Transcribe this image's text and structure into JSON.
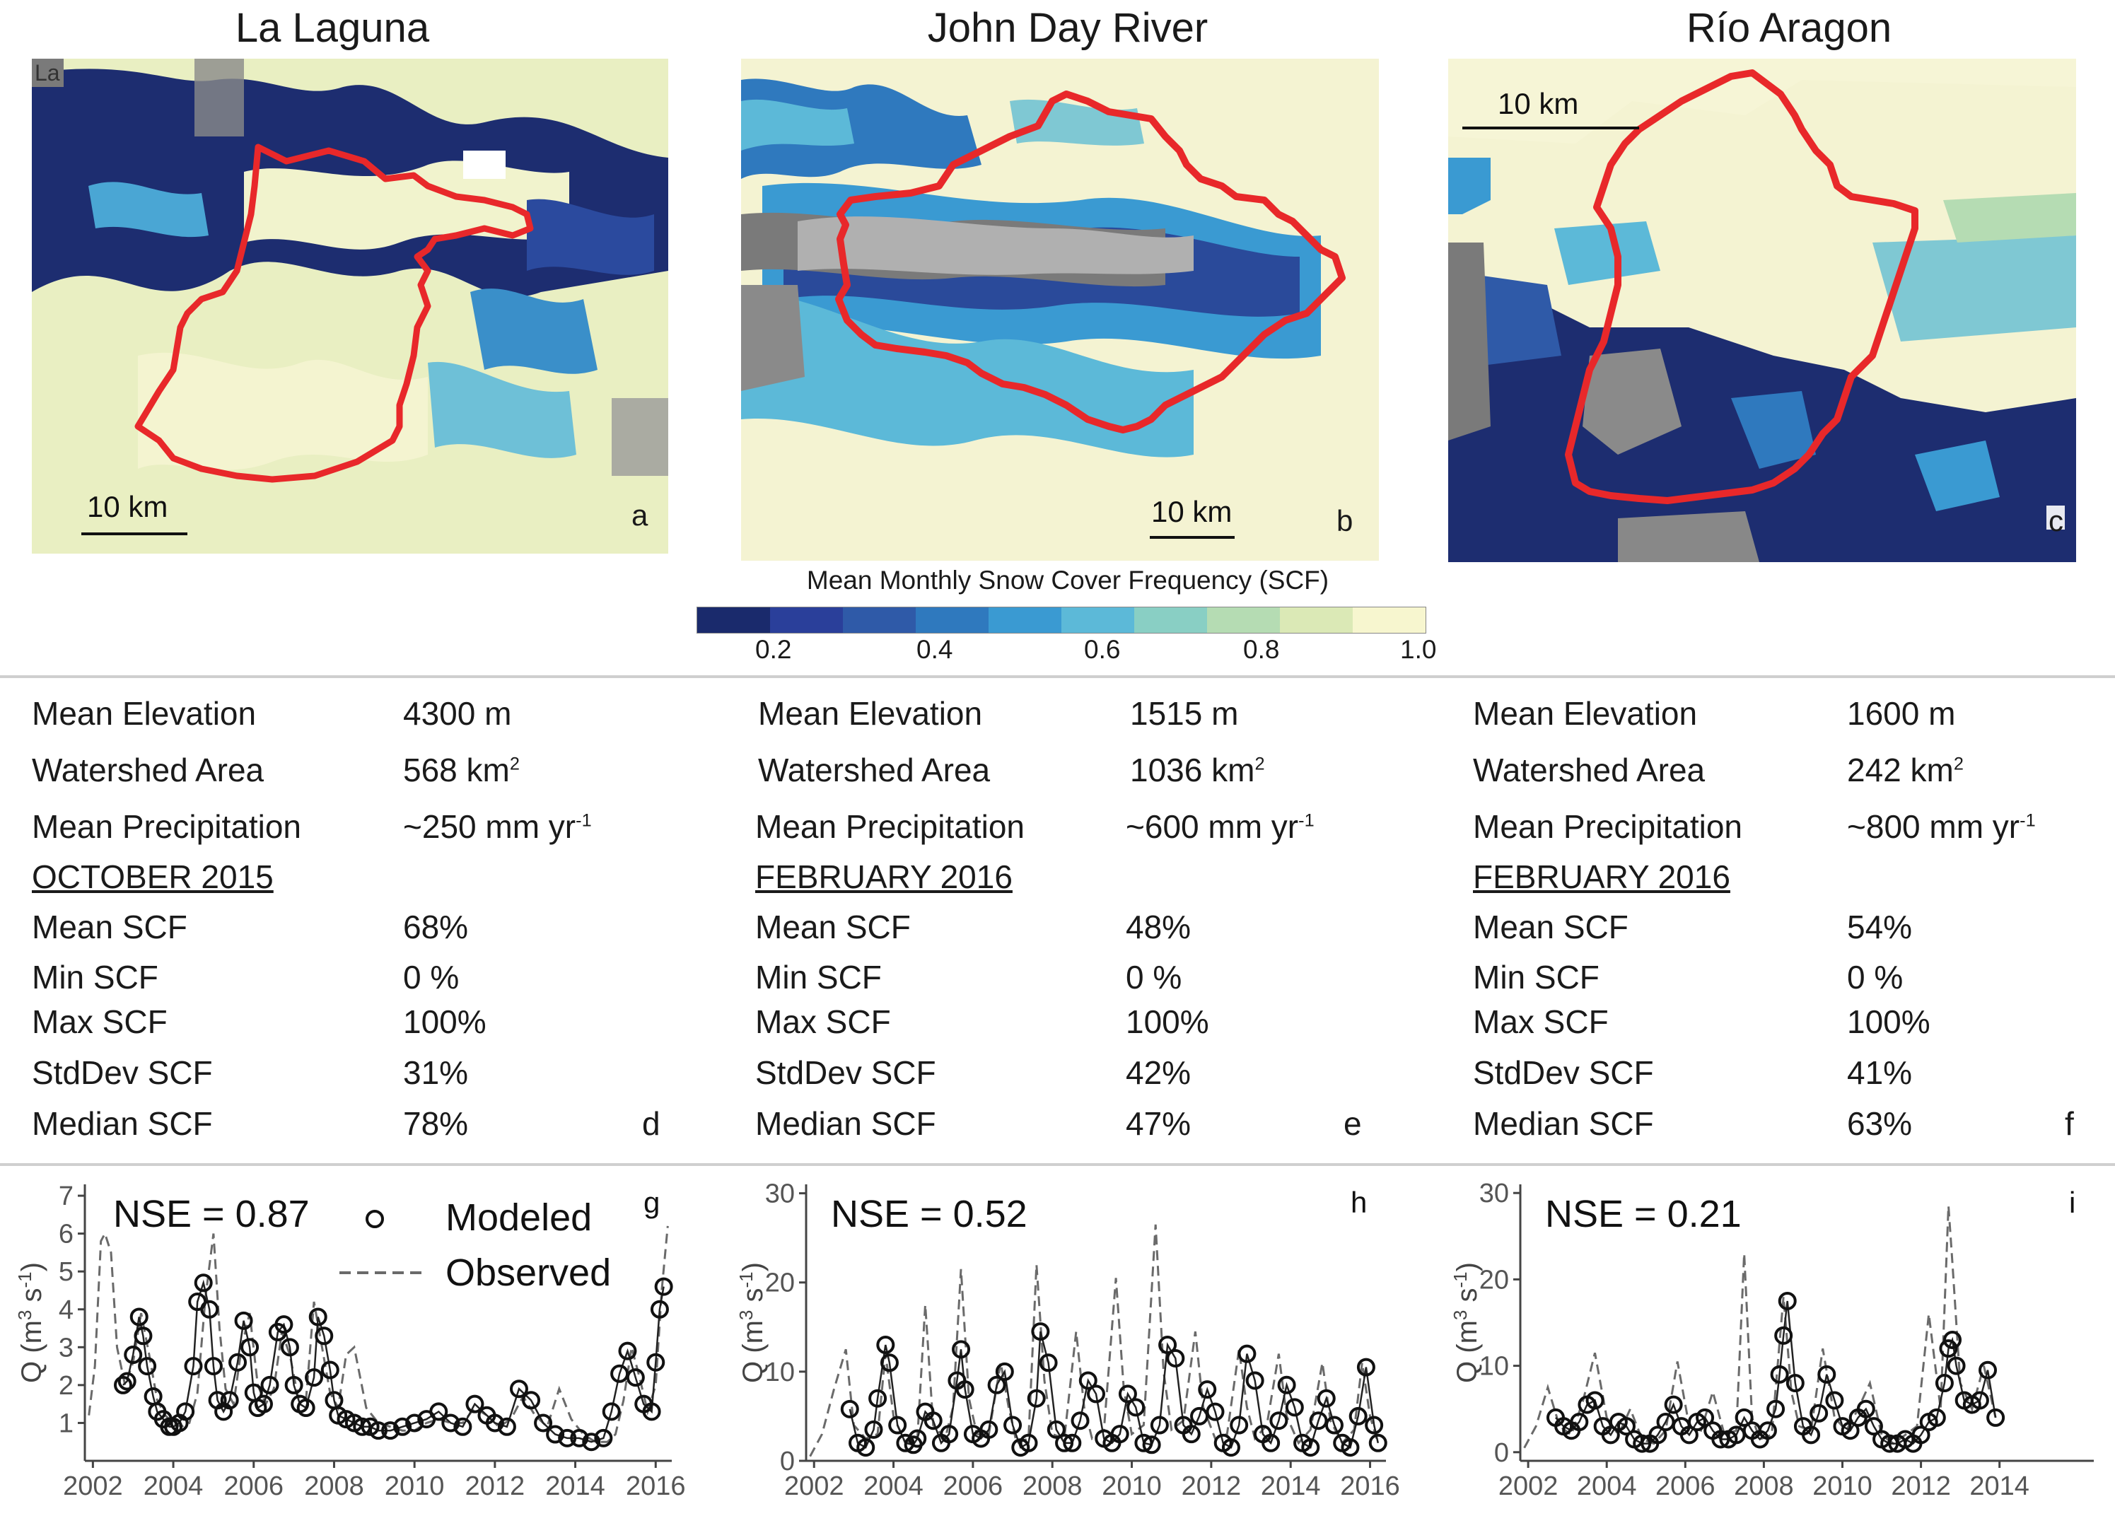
{
  "colorbar": {
    "title": "Mean Monthly Snow Cover Frequency (SCF)",
    "ticks": [
      "0.2",
      "0.4",
      "0.6",
      "0.8",
      "1.0"
    ],
    "colors": [
      "#1a2a6c",
      "#2a3f9a",
      "#2f5aa8",
      "#2f79be",
      "#3a9ad2",
      "#5cb9d8",
      "#89cfc4",
      "#b5dcb3",
      "#dbe9b6",
      "#f7f6cf"
    ]
  },
  "maps": [
    {
      "title": "La Laguna",
      "letter": "a",
      "scale": "10 km",
      "corner_label": "La"
    },
    {
      "title": "John Day River",
      "letter": "b",
      "scale": "10 km"
    },
    {
      "title": "Río Aragon",
      "letter": "c",
      "scale": "10 km"
    }
  ],
  "stats": [
    {
      "letter": "d",
      "labels": {
        "elev": "Mean Elevation",
        "area": "Watershed Area",
        "precip": "Mean Precipitation",
        "month": "OCTOBER 2015",
        "mean": "Mean SCF",
        "min": "Min SCF",
        "max": "Max SCF",
        "std": "StdDev SCF",
        "median": "Median SCF"
      },
      "values": {
        "elev": "4300 m",
        "area": "568 km",
        "area_sup": "2",
        "precip": "~250 mm yr",
        "precip_sup": "-1",
        "mean": "68%",
        "min": "0 %",
        "max": "100%",
        "std": "31%",
        "median": "78%"
      }
    },
    {
      "letter": "e",
      "labels": {
        "elev": "Mean Elevation",
        "area": "Watershed Area",
        "precip": "Mean Precipitation",
        "month": "FEBRUARY 2016",
        "mean": "Mean SCF",
        "min": "Min SCF",
        "max": "Max SCF",
        "std": "StdDev SCF",
        "median": "Median SCF"
      },
      "values": {
        "elev": "1515 m",
        "area": "1036 km",
        "area_sup": "2",
        "precip": "~600 mm yr",
        "precip_sup": "-1",
        "mean": "48%",
        "min": "0 %",
        "max": "100%",
        "std": "42%",
        "median": "47%"
      }
    },
    {
      "letter": "f",
      "labels": {
        "elev": "Mean Elevation",
        "area": "Watershed Area",
        "precip": "Mean Precipitation",
        "month": "FEBRUARY 2016",
        "mean": "Mean SCF",
        "min": "Min SCF",
        "max": "Max SCF",
        "std": "StdDev SCF",
        "median": "Median SCF"
      },
      "values": {
        "elev": "1600 m",
        "area": "242 km",
        "area_sup": "2",
        "precip": "~800 mm yr",
        "precip_sup": "-1",
        "mean": "54%",
        "min": "0 %",
        "max": "100%",
        "std": "41%",
        "median": "63%"
      }
    }
  ],
  "chart_data": [
    {
      "type": "line",
      "letter": "g",
      "nse": "NSE = 0.87",
      "legend": {
        "modeled": "Modeled",
        "observed": "Observed"
      },
      "ylabel": "Q (m3 s-1)",
      "ylim": [
        0,
        7.3
      ],
      "xlim": [
        2001.8,
        2016.4
      ],
      "yticks": [
        1,
        2,
        3,
        4,
        5,
        6,
        7
      ],
      "xticks": [
        2002,
        2004,
        2006,
        2008,
        2010,
        2012,
        2014,
        2016
      ],
      "series": [
        {
          "name": "Modeled",
          "x": [
            2002.75,
            2002.85,
            2003.0,
            2003.15,
            2003.25,
            2003.35,
            2003.5,
            2003.6,
            2003.75,
            2003.9,
            2004.0,
            2004.15,
            2004.3,
            2004.5,
            2004.6,
            2004.75,
            2004.9,
            2005.0,
            2005.1,
            2005.25,
            2005.4,
            2005.6,
            2005.75,
            2005.9,
            2006.0,
            2006.1,
            2006.25,
            2006.4,
            2006.6,
            2006.75,
            2006.9,
            2007.0,
            2007.15,
            2007.3,
            2007.5,
            2007.6,
            2007.75,
            2007.9,
            2008.0,
            2008.1,
            2008.3,
            2008.5,
            2008.7,
            2008.9,
            2009.1,
            2009.4,
            2009.7,
            2010.0,
            2010.3,
            2010.6,
            2010.9,
            2011.2,
            2011.5,
            2011.8,
            2012.0,
            2012.3,
            2012.6,
            2012.9,
            2013.2,
            2013.5,
            2013.8,
            2014.1,
            2014.4,
            2014.7,
            2014.9,
            2015.1,
            2015.3,
            2015.5,
            2015.7,
            2015.9,
            2016.0,
            2016.1,
            2016.2
          ],
          "values": [
            2.0,
            2.1,
            2.8,
            3.8,
            3.3,
            2.5,
            1.7,
            1.3,
            1.1,
            0.9,
            0.9,
            1.0,
            1.3,
            2.5,
            4.2,
            4.7,
            4.0,
            2.5,
            1.6,
            1.3,
            1.6,
            2.6,
            3.7,
            3.0,
            1.8,
            1.4,
            1.5,
            2.0,
            3.4,
            3.6,
            3.0,
            2.0,
            1.5,
            1.4,
            2.2,
            3.8,
            3.3,
            2.4,
            1.6,
            1.2,
            1.1,
            1.0,
            0.9,
            0.9,
            0.8,
            0.8,
            0.9,
            1.0,
            1.1,
            1.3,
            1.0,
            0.9,
            1.5,
            1.2,
            1.0,
            0.9,
            1.9,
            1.6,
            1.0,
            0.7,
            0.6,
            0.6,
            0.5,
            0.6,
            1.3,
            2.3,
            2.9,
            2.2,
            1.5,
            1.3,
            2.6,
            4.0,
            4.6
          ]
        },
        {
          "name": "Observed",
          "x": [
            2001.9,
            2002.05,
            2002.2,
            2002.3,
            2002.45,
            2002.6,
            2002.8,
            2003.0,
            2003.2,
            2003.4,
            2003.6,
            2003.8,
            2004.0,
            2004.2,
            2004.4,
            2004.6,
            2004.8,
            2005.0,
            2005.15,
            2005.3,
            2005.5,
            2005.7,
            2005.9,
            2006.1,
            2006.3,
            2006.5,
            2006.7,
            2006.9,
            2007.1,
            2007.3,
            2007.5,
            2007.7,
            2007.9,
            2008.1,
            2008.3,
            2008.5,
            2008.8,
            2009.1,
            2009.4,
            2009.7,
            2010.0,
            2010.3,
            2010.6,
            2010.9,
            2011.2,
            2011.5,
            2011.8,
            2012.1,
            2012.4,
            2012.7,
            2013.0,
            2013.3,
            2013.6,
            2013.9,
            2014.2,
            2014.5,
            2014.8,
            2015.0,
            2015.2,
            2015.4,
            2015.6,
            2015.8,
            2016.0,
            2016.15,
            2016.3
          ],
          "values": [
            1.2,
            2.5,
            5.8,
            6.0,
            5.5,
            3.0,
            2.0,
            2.6,
            3.9,
            2.8,
            1.6,
            1.2,
            1.0,
            0.9,
            1.0,
            1.8,
            4.3,
            6.0,
            3.5,
            1.9,
            1.5,
            3.0,
            3.9,
            2.0,
            1.5,
            1.9,
            3.4,
            2.8,
            1.7,
            1.6,
            4.2,
            3.0,
            1.8,
            1.4,
            2.8,
            3.0,
            1.4,
            1.0,
            0.9,
            0.8,
            0.8,
            1.0,
            1.1,
            1.0,
            1.0,
            1.4,
            1.2,
            0.9,
            1.1,
            1.7,
            1.2,
            0.9,
            1.9,
            1.1,
            0.7,
            0.5,
            0.5,
            0.7,
            1.6,
            3.0,
            2.2,
            1.3,
            2.0,
            4.5,
            6.2
          ]
        }
      ]
    },
    {
      "type": "line",
      "letter": "h",
      "nse": "NSE = 0.52",
      "ylabel": "Q (m3 s-1)",
      "ylim": [
        0,
        31
      ],
      "xlim": [
        2001.8,
        2016.4
      ],
      "yticks": [
        0,
        10,
        20,
        30
      ],
      "xticks": [
        2002,
        2004,
        2006,
        2008,
        2010,
        2012,
        2014,
        2016
      ],
      "series": [
        {
          "name": "Modeled",
          "x": [
            2002.9,
            2003.1,
            2003.3,
            2003.5,
            2003.6,
            2003.8,
            2003.9,
            2004.1,
            2004.3,
            2004.5,
            2004.6,
            2004.8,
            2005.0,
            2005.2,
            2005.4,
            2005.6,
            2005.7,
            2005.8,
            2006.0,
            2006.2,
            2006.4,
            2006.6,
            2006.8,
            2007.0,
            2007.2,
            2007.4,
            2007.6,
            2007.7,
            2007.9,
            2008.1,
            2008.3,
            2008.5,
            2008.7,
            2008.9,
            2009.1,
            2009.3,
            2009.5,
            2009.7,
            2009.9,
            2010.1,
            2010.3,
            2010.5,
            2010.7,
            2010.9,
            2011.1,
            2011.3,
            2011.5,
            2011.7,
            2011.9,
            2012.1,
            2012.3,
            2012.5,
            2012.7,
            2012.9,
            2013.1,
            2013.3,
            2013.5,
            2013.7,
            2013.9,
            2014.1,
            2014.3,
            2014.5,
            2014.7,
            2014.9,
            2015.1,
            2015.3,
            2015.5,
            2015.7,
            2015.9,
            2016.1,
            2016.2
          ],
          "values": [
            5.8,
            2.0,
            1.5,
            3.5,
            7.0,
            13.0,
            11.0,
            4.0,
            2.0,
            1.8,
            2.5,
            5.5,
            4.5,
            2.0,
            3.0,
            9.0,
            12.5,
            8.0,
            3.0,
            2.5,
            3.5,
            8.5,
            10.0,
            4.0,
            1.5,
            2.0,
            7.0,
            14.5,
            11.0,
            3.5,
            2.0,
            2.0,
            4.5,
            9.0,
            7.5,
            2.5,
            2.0,
            3.0,
            7.5,
            6.0,
            2.0,
            1.8,
            4.0,
            13.0,
            11.5,
            4.0,
            3.0,
            5.0,
            8.0,
            5.5,
            2.0,
            1.5,
            4.0,
            12.0,
            9.0,
            3.0,
            2.0,
            4.5,
            8.5,
            6.0,
            2.0,
            1.5,
            4.5,
            7.0,
            4.0,
            2.0,
            1.5,
            5.0,
            10.5,
            4.0,
            2.0
          ]
        },
        {
          "name": "Observed",
          "x": [
            2001.9,
            2002.2,
            2002.5,
            2002.8,
            2003.0,
            2003.3,
            2003.6,
            2003.8,
            2004.0,
            2004.3,
            2004.6,
            2004.8,
            2005.0,
            2005.3,
            2005.5,
            2005.7,
            2005.9,
            2006.1,
            2006.4,
            2006.7,
            2006.9,
            2007.1,
            2007.4,
            2007.6,
            2007.8,
            2008.0,
            2008.3,
            2008.6,
            2008.8,
            2009.0,
            2009.3,
            2009.6,
            2009.8,
            2010.0,
            2010.3,
            2010.6,
            2010.8,
            2011.0,
            2011.3,
            2011.6,
            2011.8,
            2012.1,
            2012.4,
            2012.7,
            2012.9,
            2013.1,
            2013.4,
            2013.7,
            2013.9,
            2014.2,
            2014.5,
            2014.8,
            2015.0,
            2015.3,
            2015.6,
            2015.8,
            2016.0,
            2016.2
          ],
          "values": [
            0.5,
            3.0,
            8.0,
            12.5,
            4.0,
            2.5,
            3.0,
            12.0,
            5.0,
            2.0,
            2.5,
            17.5,
            4.0,
            2.5,
            6.0,
            21.5,
            7.0,
            3.0,
            3.0,
            11.0,
            6.0,
            2.0,
            2.5,
            22.0,
            9.0,
            3.0,
            2.5,
            14.5,
            6.0,
            2.5,
            3.5,
            20.5,
            8.0,
            3.0,
            4.0,
            26.5,
            10.0,
            3.5,
            4.5,
            14.5,
            6.0,
            2.5,
            3.0,
            12.5,
            6.0,
            2.5,
            4.0,
            12.0,
            5.0,
            2.0,
            3.5,
            11.0,
            4.5,
            2.0,
            3.5,
            11.0,
            5.0,
            2.0
          ]
        }
      ]
    },
    {
      "type": "line",
      "letter": "i",
      "nse": "NSE = 0.21",
      "ylabel": "Q (m3 s-1)",
      "ylim": [
        -1,
        31
      ],
      "xlim": [
        2001.8,
        2016.4
      ],
      "yticks": [
        0,
        10,
        20,
        30
      ],
      "xticks": [
        2002,
        2004,
        2006,
        2008,
        2010,
        2012,
        2014
      ],
      "series": [
        {
          "name": "Modeled",
          "x": [
            2002.7,
            2002.9,
            2003.1,
            2003.3,
            2003.5,
            2003.7,
            2003.9,
            2004.1,
            2004.3,
            2004.5,
            2004.7,
            2004.9,
            2005.1,
            2005.3,
            2005.5,
            2005.7,
            2005.9,
            2006.1,
            2006.3,
            2006.5,
            2006.7,
            2006.9,
            2007.1,
            2007.3,
            2007.5,
            2007.7,
            2007.9,
            2008.1,
            2008.3,
            2008.4,
            2008.5,
            2008.6,
            2008.8,
            2009.0,
            2009.2,
            2009.4,
            2009.6,
            2009.8,
            2010.0,
            2010.2,
            2010.4,
            2010.6,
            2010.8,
            2011.0,
            2011.2,
            2011.4,
            2011.6,
            2011.8,
            2012.0,
            2012.2,
            2012.4,
            2012.6,
            2012.7,
            2012.8,
            2012.9,
            2013.1,
            2013.3,
            2013.5,
            2013.7,
            2013.9
          ],
          "values": [
            4.0,
            3.0,
            2.5,
            3.5,
            5.5,
            6.0,
            3.0,
            2.0,
            3.5,
            3.0,
            1.5,
            1.0,
            1.0,
            2.0,
            3.5,
            5.5,
            3.0,
            2.0,
            3.5,
            4.0,
            2.5,
            1.5,
            1.5,
            2.0,
            4.0,
            2.5,
            1.5,
            2.5,
            5.0,
            9.0,
            13.5,
            17.5,
            8.0,
            3.0,
            2.0,
            4.5,
            9.0,
            6.0,
            3.0,
            2.5,
            4.0,
            5.0,
            3.0,
            1.5,
            1.0,
            1.0,
            1.5,
            1.0,
            2.0,
            3.5,
            4.0,
            8.0,
            12.0,
            13.0,
            10.0,
            6.0,
            5.5,
            6.0,
            9.5,
            4.0
          ]
        },
        {
          "name": "Observed",
          "x": [
            2001.9,
            2002.2,
            2002.5,
            2002.8,
            2003.1,
            2003.4,
            2003.7,
            2004.0,
            2004.3,
            2004.6,
            2004.9,
            2005.2,
            2005.5,
            2005.8,
            2006.1,
            2006.4,
            2006.7,
            2007.0,
            2007.3,
            2007.5,
            2007.7,
            2007.9,
            2008.2,
            2008.5,
            2008.7,
            2008.9,
            2009.2,
            2009.5,
            2009.8,
            2010.1,
            2010.4,
            2010.7,
            2011.0,
            2011.3,
            2011.6,
            2011.9,
            2012.2,
            2012.5,
            2012.7,
            2012.8,
            2013.0,
            2013.3,
            2013.6,
            2013.9
          ],
          "values": [
            0.5,
            3.0,
            7.5,
            3.0,
            2.0,
            6.0,
            11.5,
            4.0,
            2.0,
            5.0,
            1.5,
            1.0,
            2.5,
            10.5,
            3.0,
            2.5,
            7.0,
            2.0,
            2.5,
            23.0,
            4.0,
            1.5,
            2.0,
            18.0,
            7.0,
            3.0,
            2.5,
            12.0,
            4.0,
            2.5,
            5.0,
            8.0,
            2.0,
            1.0,
            2.0,
            3.0,
            16.0,
            5.0,
            28.5,
            22.0,
            8.0,
            5.0,
            10.0,
            4.0
          ]
        }
      ]
    }
  ]
}
